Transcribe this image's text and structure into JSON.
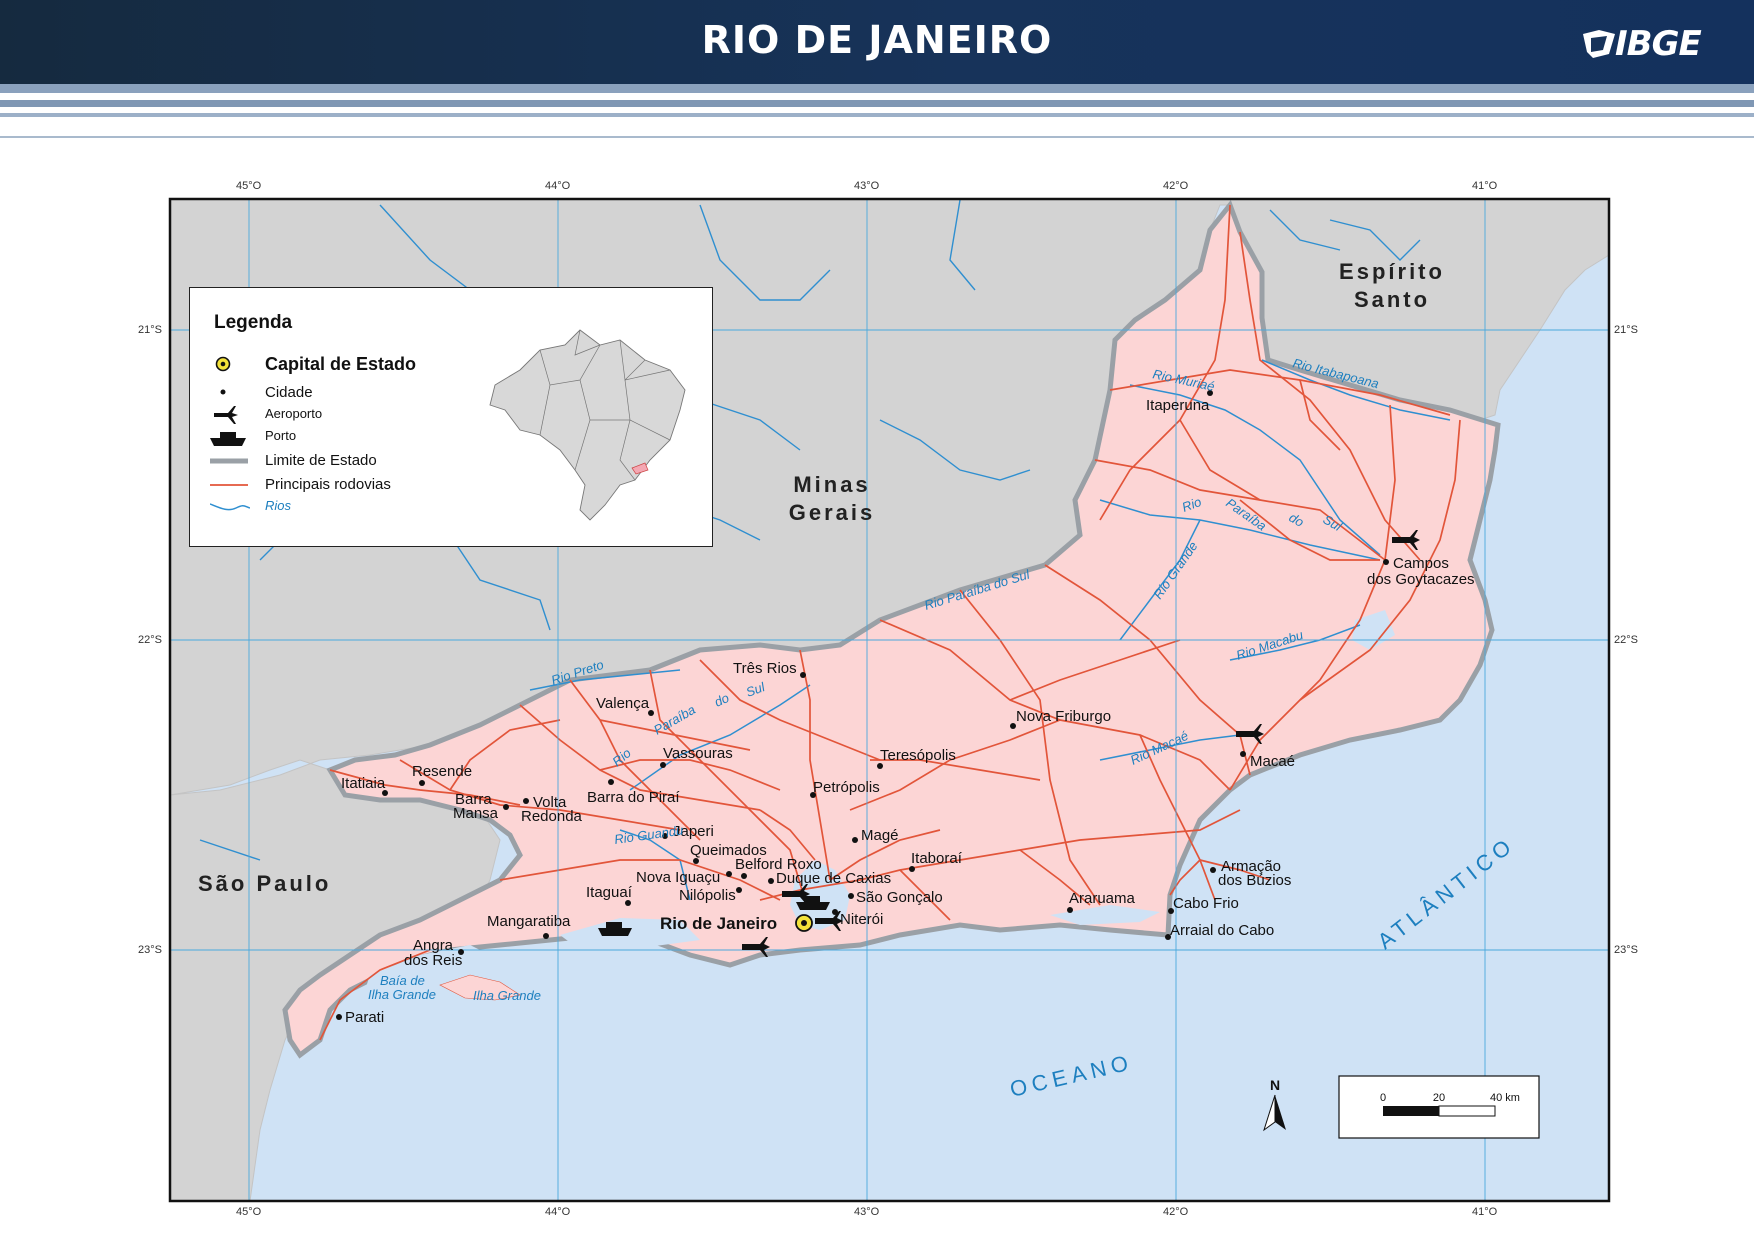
{
  "header": {
    "title": "RIO DE JANEIRO",
    "logo_text": "IBGE"
  },
  "colors": {
    "header_bg": "#152a3f",
    "stripe": "#7f97b4",
    "state_fill": "#fcd5d5",
    "neighbor_fill": "#d3d3d3",
    "ocean": "#cfe2f5",
    "roads": "#e2553a",
    "rivers": "#2f8fd0",
    "state_border": "#9aa0a6"
  },
  "legend": {
    "title": "Legenda",
    "items": [
      {
        "label": "Capital de Estado",
        "icon": "capital-icon"
      },
      {
        "label": "Cidade",
        "icon": "city-dot-icon"
      },
      {
        "label": "Aeroporto",
        "icon": "airplane-icon"
      },
      {
        "label": "Porto",
        "icon": "ship-icon"
      },
      {
        "label": "Limite de Estado",
        "icon": "state-border-line-icon"
      },
      {
        "label": "Principais rodovias",
        "icon": "road-line-icon"
      },
      {
        "label": "Rios",
        "icon": "river-line-icon"
      }
    ]
  },
  "coordinates": {
    "longitudes": [
      "45°O",
      "44°O",
      "43°O",
      "42°O",
      "41°O"
    ],
    "latitudes": [
      "21°S",
      "22°S",
      "23°S"
    ]
  },
  "regions": {
    "minas": [
      "Minas",
      "Gerais"
    ],
    "espirito": [
      "Espírito",
      "Santo"
    ],
    "sao_paulo": "São Paulo",
    "oceano": "OCEANO",
    "atlantico": "ATLÂNTICO"
  },
  "cities": {
    "capital": "Rio de Janeiro",
    "itaperuna": "Itaperuna",
    "campos_1": "Campos",
    "campos_2": "dos Goytacazes",
    "tres_rios": "Três Rios",
    "valenca": "Valença",
    "vassouras": "Vassouras",
    "nova_friburgo": "Nova Friburgo",
    "teresopolis": "Teresópolis",
    "petropolis": "Petrópolis",
    "macae": "Macaé",
    "itatiaia": "Itatiaia",
    "resende": "Resende",
    "barra_mansa_1": "Barra",
    "barra_mansa_2": "Mansa",
    "volta_redonda_1": "Volta",
    "volta_redonda_2": "Redonda",
    "barra_pirai": "Barra do Piraí",
    "japeri": "Japeri",
    "queimados": "Queimados",
    "belford_roxo": "Belford Roxo",
    "nova_iguacu": "Nova Iguaçu",
    "duque_caxias": "Duque de Caxias",
    "mage": "Magé",
    "itaborai": "Itaboraí",
    "nilopolis": "Nilópolis",
    "sao_goncalo": "São Gonçalo",
    "niteroi": "Niterói",
    "itaguai": "Itaguaí",
    "mangaratiba": "Mangaratiba",
    "angra_1": "Angra",
    "angra_2": "dos Reis",
    "parati": "Parati",
    "araruama": "Araruama",
    "cabo_frio": "Cabo Frio",
    "arraial": "Arraial do Cabo",
    "buzios_1": "Armação",
    "buzios_2": "dos Búzios"
  },
  "rivers": {
    "muriae": "Rio Muriaé",
    "itabapoana": "Rio Itabapoana",
    "paraiba_sul_upper": "Rio Paraíba do Sul",
    "paraiba_east_1": "Rio",
    "paraiba_east_2": "Paraíba",
    "paraiba_east_3": "do",
    "paraiba_east_4": "Sul",
    "grande": "Rio Grande",
    "macabu": "Rio Macabu",
    "macae": "Rio Macaé",
    "preto": "Rio Preto",
    "paraiba_west_1": "Rio",
    "paraiba_west_2": "Paraíba",
    "paraiba_west_3": "do",
    "paraiba_west_4": "Sul",
    "guandu": "Rio Guandu",
    "baia_1": "Baía de",
    "baia_2": "Ilha Grande",
    "ilha_grande": "Ilha Grande"
  },
  "scale": {
    "north": "N",
    "ticks": [
      "0",
      "20",
      "40 km"
    ]
  }
}
